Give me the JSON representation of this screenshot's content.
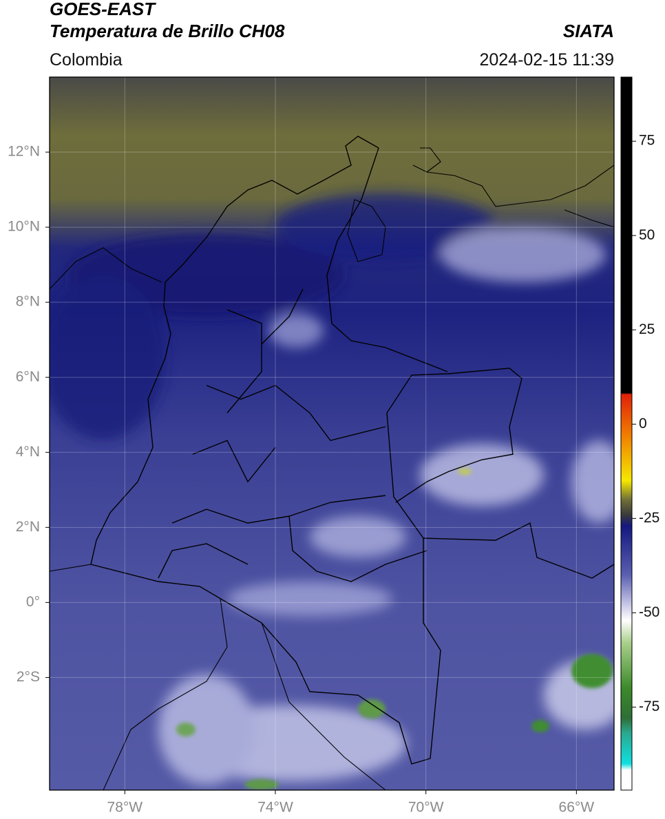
{
  "header": {
    "title": "GOES-EAST",
    "subtitle": "Temperatura de Brillo CH08",
    "region": "Colombia",
    "source": "SIATA",
    "datetime": "2024-02-15 11:39"
  },
  "map": {
    "xlim": [
      -80,
      -65
    ],
    "ylim": [
      -5,
      14
    ],
    "xticks": [
      {
        "value": -78,
        "label": "78°W"
      },
      {
        "value": -74,
        "label": "74°W"
      },
      {
        "value": -70,
        "label": "70°W"
      },
      {
        "value": -66,
        "label": "66°W"
      }
    ],
    "yticks": [
      {
        "value": 12,
        "label": "12°N"
      },
      {
        "value": 10,
        "label": "10°N"
      },
      {
        "value": 8,
        "label": "8°N"
      },
      {
        "value": 6,
        "label": "6°N"
      },
      {
        "value": 4,
        "label": "4°N"
      },
      {
        "value": 2,
        "label": "2°N"
      },
      {
        "value": 0,
        "label": "0°"
      },
      {
        "value": -2,
        "label": "2°S"
      }
    ],
    "grid": true
  },
  "colorbar": {
    "lim": [
      -97,
      92
    ],
    "ticks": [
      75,
      50,
      25,
      0,
      -25,
      -50,
      -75
    ]
  }
}
